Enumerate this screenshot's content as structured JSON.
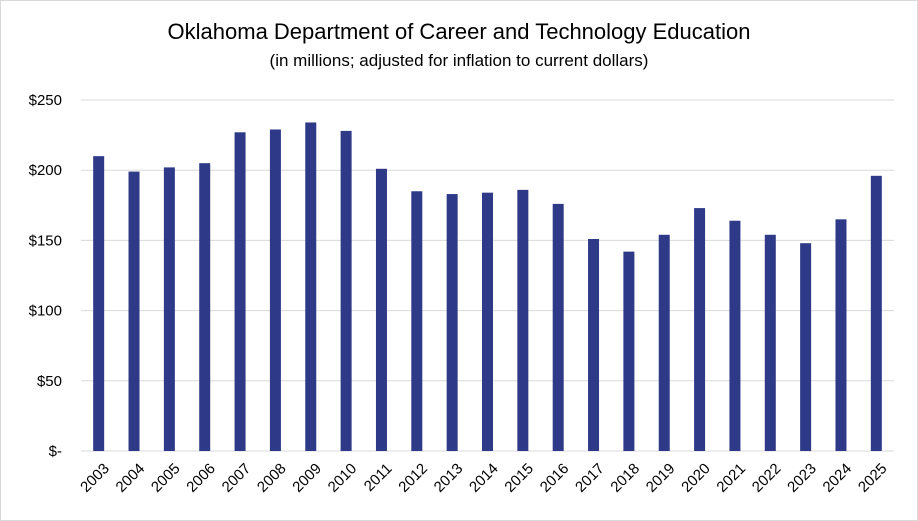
{
  "chart_data": {
    "type": "bar",
    "title": "Oklahoma Department of Career and Technology Education",
    "subtitle": "(in millions; adjusted for inflation to current dollars)",
    "xlabel": "",
    "ylabel": "",
    "categories": [
      "2003",
      "2004",
      "2005",
      "2006",
      "2007",
      "2008",
      "2009",
      "2010",
      "2011",
      "2012",
      "2013",
      "2014",
      "2015",
      "2016",
      "2017",
      "2018",
      "2019",
      "2020",
      "2021",
      "2022",
      "2023",
      "2024",
      "2025"
    ],
    "values": [
      210,
      199,
      202,
      205,
      227,
      229,
      234,
      228,
      201,
      185,
      183,
      184,
      186,
      176,
      151,
      142,
      154,
      173,
      164,
      154,
      148,
      165,
      196
    ],
    "ylim": [
      0,
      250
    ],
    "yticks": [
      0,
      50,
      100,
      150,
      200,
      250
    ],
    "ytick_labels": [
      "$-",
      "$50",
      "$100",
      "$150",
      "$200",
      "$250"
    ],
    "grid": true,
    "legend": "none",
    "bar_color": "#2e3a87",
    "grid_color": "#d9d9d9"
  }
}
